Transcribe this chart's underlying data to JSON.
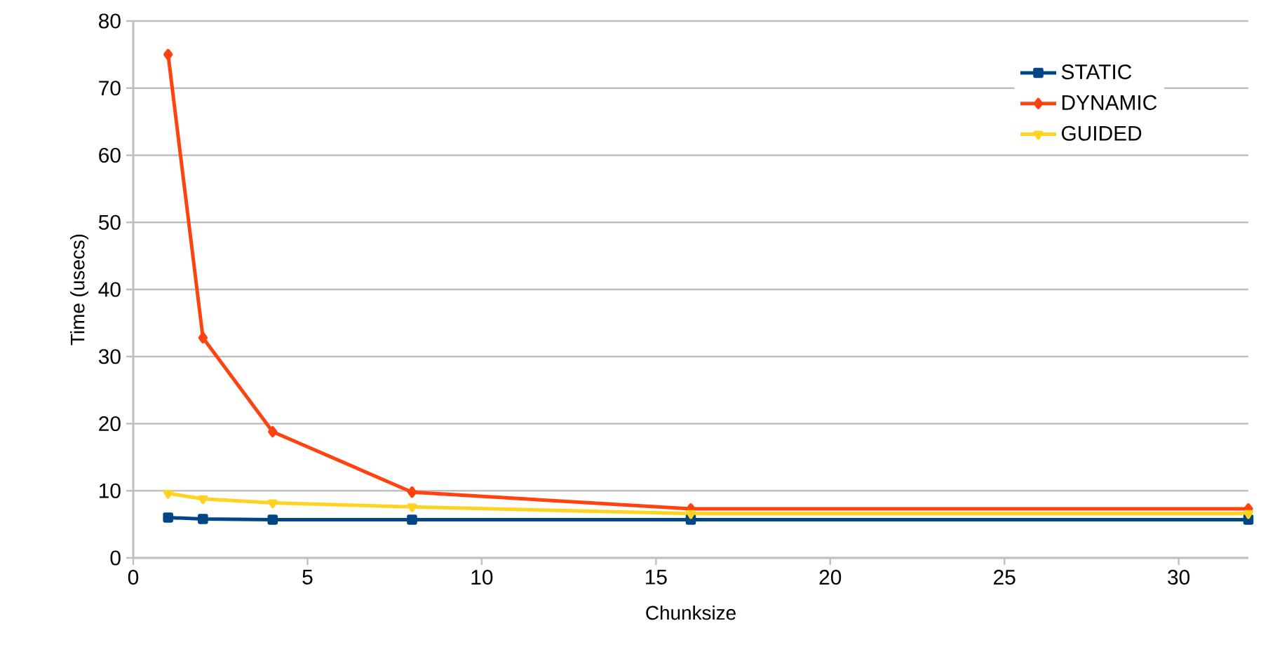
{
  "chart_data": {
    "type": "line",
    "xlabel": "Chunksize",
    "ylabel": "Time (usecs)",
    "x": [
      1,
      2,
      4,
      8,
      16,
      32
    ],
    "series": [
      {
        "name": "STATIC",
        "color": "#004586",
        "marker": "square",
        "values": [
          6.0,
          5.8,
          5.7,
          5.7,
          5.7,
          5.7
        ]
      },
      {
        "name": "DYNAMIC",
        "color": "#ff420e",
        "marker": "diamond",
        "values": [
          75,
          32.8,
          18.8,
          9.8,
          7.3,
          7.3
        ]
      },
      {
        "name": "GUIDED",
        "color": "#ffd320",
        "marker": "triangle",
        "values": [
          9.6,
          8.8,
          8.2,
          7.6,
          6.6,
          6.6
        ]
      }
    ],
    "xlim": [
      0,
      32
    ],
    "xticks": [
      0,
      5,
      10,
      15,
      20,
      25,
      30
    ],
    "ylim": [
      0,
      80
    ],
    "yticks": [
      0,
      10,
      20,
      30,
      40,
      50,
      60,
      70,
      80
    ],
    "grid": "y",
    "legend": "top right"
  }
}
